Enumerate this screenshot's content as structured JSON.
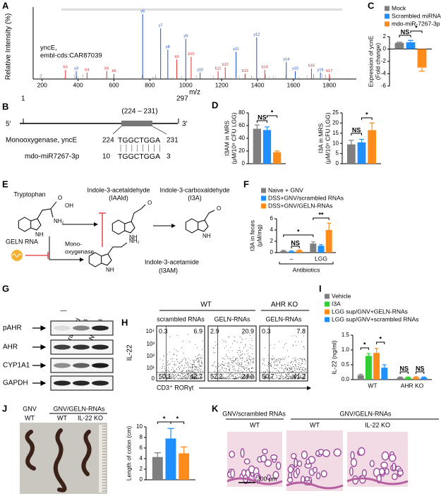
{
  "chart_data": [
    {
      "type": "spectrum",
      "panel": "A",
      "annotation": [
        "yncE,",
        "embl-cds:CAR87039"
      ],
      "xlabel": "m/z",
      "ylabel": [
        "Relative Intensity (%)"
      ],
      "xlim": [
        150,
        1950
      ],
      "xticks": [
        200,
        400,
        600,
        800,
        1000,
        1200,
        1400,
        1600,
        1800
      ],
      "ylim": [
        0,
        100
      ],
      "x": [
        330,
        390,
        450,
        560,
        600,
        760,
        860,
        900,
        950,
        1000,
        1030,
        1080,
        1180,
        1220,
        1280,
        1330,
        1395,
        1440,
        1560,
        1610,
        1700,
        1750,
        1800
      ],
      "values": [
        14,
        12,
        10,
        12,
        8,
        100,
        78,
        45,
        30,
        62,
        34,
        10,
        12,
        18,
        42,
        8,
        64,
        14,
        26,
        12,
        16,
        10,
        8
      ],
      "peak_labels": [
        "b3",
        "y3",
        "b4",
        "b5",
        "b6",
        "y6",
        "y7",
        "y8",
        "b9",
        "y9",
        "b10",
        "y10",
        "b11",
        "b12",
        "y11",
        "b13",
        "y12",
        "b14",
        "y14",
        "y15",
        "b16",
        "y16",
        "b17"
      ],
      "peak_colors": [
        "#e03030",
        "#2050d0",
        "#e03030",
        "#e03030",
        "#e03030",
        "#2050d0",
        "#2050d0",
        "#2050d0",
        "#e03030",
        "#2050d0",
        "#e03030",
        "#2050d0",
        "#e03030",
        "#e03030",
        "#2050d0",
        "#e03030",
        "#2050d0",
        "#e03030",
        "#2050d0",
        "#2050d0",
        "#e03030",
        "#2050d0",
        "#e03030"
      ]
    },
    {
      "type": "bar",
      "panel": "C",
      "ylabel": [
        "Expression of ycnE",
        "(Fold change)"
      ],
      "ylim": [
        -6,
        2
      ],
      "yticks": [
        -6,
        -4,
        -2,
        0,
        2
      ],
      "series": [
        {
          "name": "Mock",
          "color": "#7f7f7f",
          "values": [
            1
          ],
          "errors": [
            0.1
          ]
        },
        {
          "name": "Scrambled miRNA",
          "color": "#1f8fff",
          "values": [
            1.1
          ],
          "errors": [
            0.3
          ]
        },
        {
          "name": "mdo-miR-7267-3p",
          "color": "#ff8c1a",
          "values": [
            -3
          ],
          "errors": [
            0.6
          ]
        }
      ],
      "significance": [
        "NS",
        "*"
      ]
    },
    {
      "type": "bar",
      "panel": "D",
      "ylabel": [
        "I3AM in MRS",
        "(μM/10⁹ CFU LGG)"
      ],
      "ylim": [
        0,
        80
      ],
      "yticks": [
        0,
        20,
        40,
        60,
        80
      ],
      "values": [
        55,
        53,
        18
      ],
      "errors": [
        6,
        5,
        2
      ],
      "colors": [
        "#7f7f7f",
        "#1f8fff",
        "#ff8c1a"
      ],
      "significance": [
        "NS",
        "*"
      ]
    },
    {
      "type": "bar",
      "ylabel": [
        "I3A in MRS",
        "(μM/10⁹ CFU LGG)"
      ],
      "ylim": [
        0,
        25
      ],
      "yticks": [
        0,
        5,
        10,
        15,
        20,
        25
      ],
      "values": [
        9.5,
        10.5,
        16.5
      ],
      "errors": [
        2,
        1.5,
        3.5
      ],
      "colors": [
        "#7f7f7f",
        "#1f8fff",
        "#ff8c1a"
      ],
      "significance": [
        "NS",
        "*"
      ]
    },
    {
      "type": "bar",
      "panel": "F",
      "ylabel": [
        "I3A in feces",
        "(μM/mg)"
      ],
      "ylim": [
        0,
        6
      ],
      "yticks": [
        0,
        2,
        4,
        6
      ],
      "categories": [
        "–",
        "LGG"
      ],
      "group_label": "Antibiotics",
      "series": [
        {
          "name": "Naive + GNV",
          "color": "#7f7f7f",
          "values": [
            0.3,
            1.6
          ],
          "errors": [
            0.1,
            0.3
          ]
        },
        {
          "name": "DSS+GNV/scrambled RNAs",
          "color": "#1f8fff",
          "values": [
            0.2,
            1.2
          ],
          "errors": [
            0.1,
            0.2
          ]
        },
        {
          "name": "DSS+GNV/GELN-RNAs",
          "color": "#ff8c1a",
          "values": [
            0.35,
            4.0
          ],
          "errors": [
            0.1,
            1.2
          ]
        }
      ],
      "significance": [
        "NS",
        "*",
        "**"
      ]
    },
    {
      "type": "bar",
      "panel": "I",
      "ylabel": [
        "IL-22 (ng/ml)"
      ],
      "ylim": [
        0,
        1.5
      ],
      "yticks": [
        {
          "value": 0,
          "label": "0.0"
        },
        {
          "value": 0.5,
          "label": "0.5"
        },
        {
          "value": 1,
          "label": "1.0"
        },
        {
          "value": 1.5,
          "label": "1.5"
        }
      ],
      "categories": [
        "WT",
        "AHR KO"
      ],
      "series": [
        {
          "name": "Vehicle",
          "color": "#7f7f7f",
          "values": [
            0.15,
            0.07
          ],
          "errors": [
            0.03,
            0.02
          ]
        },
        {
          "name": "I3A",
          "color": "#33cc33",
          "values": [
            0.8,
            0.07
          ],
          "errors": [
            0.08,
            0.02
          ]
        },
        {
          "name": "LGG sup/GNV+GELN-RNAs",
          "color": "#ff8c1a",
          "values": [
            0.9,
            0.08
          ],
          "errors": [
            0.15,
            0.02
          ]
        },
        {
          "name": "LGG sup/GNV+scrambled RNAs",
          "color": "#1f8fff",
          "values": [
            0.4,
            0.07
          ],
          "errors": [
            0.1,
            0.02
          ]
        }
      ],
      "significance": [
        "*",
        "*",
        "NS",
        "NS"
      ]
    },
    {
      "type": "bar",
      "panel": "J",
      "ylabel": [
        "Length of colon (cm)"
      ],
      "ylim": [
        0,
        10
      ],
      "yticks": [
        0,
        2,
        4,
        6,
        8,
        10
      ],
      "values": [
        4.3,
        7.8,
        5.0
      ],
      "errors": [
        0.8,
        1.9,
        1.2
      ],
      "colors": [
        "#7f7f7f",
        "#1f8fff",
        "#ff8c1a"
      ],
      "significance": [
        "*",
        "*"
      ]
    }
  ],
  "panel_b": {
    "letter": "B",
    "start": "1",
    "end": "297",
    "region": "(224 – 231)",
    "five": "5'",
    "three": "3'",
    "gene": "Monooxygenase, yncE",
    "gene_start": "224",
    "gene_seq": "TGGCTGGA",
    "gene_end": "231",
    "mirna": "mdo-miR7267-3p",
    "mirna_start": "10",
    "mirna_seq": "TGGCTGGA",
    "mirna_end": "3"
  },
  "panel_e": {
    "letter": "E",
    "tryptophan": "Tryptophan",
    "iaald": [
      "Indole-3-acetaldehyde",
      "(IAAld)"
    ],
    "i3a": [
      "Indole-3-carboxaldehyde",
      "(I3A)"
    ],
    "geln": "GELN RNA",
    "enzyme": [
      "Mono-",
      "oxygenase"
    ],
    "i3am": [
      "Indole-3-acetamide",
      "(I3AM)"
    ],
    "atoms": {
      "trp": [
        "O",
        "OH",
        "NH₂",
        "NH"
      ],
      "iaald": [
        "O",
        "NH"
      ],
      "i3a": [
        "O",
        "NH"
      ],
      "i3am": [
        "NH₂",
        "NH"
      ]
    }
  },
  "panel_g": {
    "letter": "G",
    "lanes": [
      [
        "—"
      ],
      [
        "Scrambled",
        "RNAs"
      ],
      [
        "GELN-RNAs"
      ]
    ],
    "rows": [
      "pAHR",
      "AHR",
      "CYP1A1",
      "GAPDH"
    ]
  },
  "panel_h": {
    "letter": "H",
    "groups": [
      "WT",
      "AHR KO"
    ],
    "plots": [
      {
        "title": "scrambled RNAs",
        "quadrants": [
          "0.3",
          "6.9",
          "50.1",
          "42.7"
        ]
      },
      {
        "title": "GELN-RNAs",
        "quadrants": [
          "2.9",
          "20.9",
          "52.2",
          "24.0"
        ]
      },
      {
        "title": "GELN-RNAs",
        "quadrants": [
          "0.3",
          "7.8",
          "50.7",
          "41.2"
        ]
      }
    ],
    "ylabel": "IL-22",
    "xlabel": "CD3⁺ RORγt",
    "axis_labels": [
      "10⁴",
      "10³",
      "10²",
      "10¹",
      "0"
    ]
  },
  "panel_j": {
    "groups": [
      "GNV",
      "GNV/GELN-RNAs"
    ],
    "labels": [
      "WT",
      "WT",
      "IL-22 KO"
    ]
  },
  "panel_k": {
    "letter": "K",
    "groups": [
      "GNV/scrambled RNAs",
      "GNV/GELN-RNAs"
    ],
    "labels": [
      "WT",
      "WT",
      "IL-22 KO"
    ],
    "scale": "200 μm"
  }
}
